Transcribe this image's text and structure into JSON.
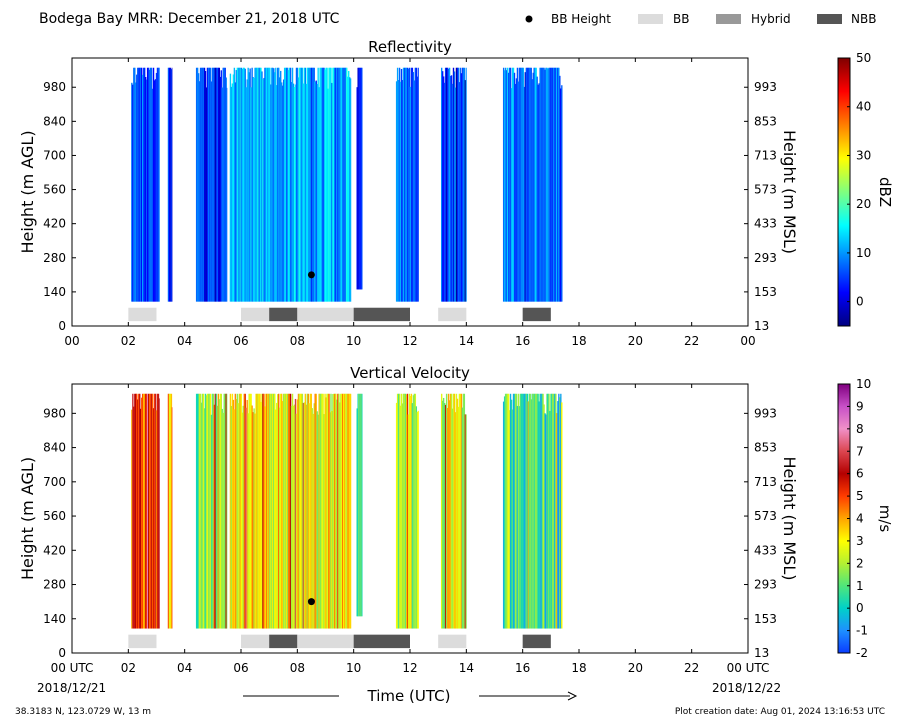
{
  "title": "Bodega Bay MRR:  December 21, 2018 UTC",
  "legend": {
    "items": [
      {
        "label": "BB Height",
        "kind": "dot",
        "color": "#000000"
      },
      {
        "label": "BB",
        "kind": "patch",
        "color": "#dcdcdc"
      },
      {
        "label": "Hybrid",
        "kind": "patch",
        "color": "#999999"
      },
      {
        "label": "NBB",
        "kind": "patch",
        "color": "#555555"
      }
    ]
  },
  "footer": {
    "coords": "38.3183 N, 123.0729 W, 13 m",
    "created": "Plot creation date: Aug 01, 2024 13:16:53 UTC",
    "start_date": "2018/12/21",
    "end_date": "2018/12/22",
    "time_label": "Time (UTC)"
  },
  "chart_data": [
    {
      "type": "heatmap",
      "title": "Reflectivity",
      "ylabel": "Height (m AGL)",
      "ylabel_right": "Height (m MSL)",
      "xlim": [
        0,
        24
      ],
      "ylim": [
        0,
        1100
      ],
      "x_ticks": [
        "00",
        "02",
        "04",
        "06",
        "08",
        "10",
        "12",
        "14",
        "16",
        "18",
        "20",
        "22",
        "00"
      ],
      "y_ticks": [
        0,
        140,
        280,
        420,
        560,
        700,
        840,
        980
      ],
      "y_ticks_right": [
        13,
        153,
        293,
        433,
        573,
        713,
        853,
        993
      ],
      "colorbar": {
        "label": "dBZ",
        "min": -5,
        "max": 50,
        "ticks": [
          0,
          10,
          20,
          30,
          40,
          50
        ],
        "colors": [
          "#00007f",
          "#0000ff",
          "#007fff",
          "#00ffff",
          "#7fff7f",
          "#ffff00",
          "#ff7f00",
          "#ff0000",
          "#7f0000"
        ]
      },
      "bb_height": [
        {
          "time": 8.5,
          "height": 210
        }
      ],
      "bb_classes": [
        {
          "start": 2.0,
          "end": 3.0,
          "class": "BB"
        },
        {
          "start": 6.0,
          "end": 7.0,
          "class": "BB"
        },
        {
          "start": 7.0,
          "end": 8.0,
          "class": "NBB"
        },
        {
          "start": 8.0,
          "end": 10.0,
          "class": "BB"
        },
        {
          "start": 10.0,
          "end": 12.0,
          "class": "NBB"
        },
        {
          "start": 13.0,
          "end": 14.0,
          "class": "BB"
        },
        {
          "start": 16.0,
          "end": 17.0,
          "class": "NBB"
        }
      ],
      "echo_segments": [
        {
          "start": 2.1,
          "end": 3.1,
          "top": 1060,
          "base": 100,
          "value": 6
        },
        {
          "start": 3.4,
          "end": 3.55,
          "top": 1060,
          "base": 100,
          "value": 4
        },
        {
          "start": 4.4,
          "end": 5.5,
          "top": 1060,
          "base": 100,
          "value": 5
        },
        {
          "start": 5.6,
          "end": 9.9,
          "top": 1060,
          "base": 100,
          "value": 12
        },
        {
          "start": 10.1,
          "end": 10.3,
          "top": 1060,
          "base": 150,
          "value": 3
        },
        {
          "start": 11.5,
          "end": 12.3,
          "top": 1060,
          "base": 100,
          "value": 8
        },
        {
          "start": 13.1,
          "end": 14.0,
          "top": 1060,
          "base": 100,
          "value": 6
        },
        {
          "start": 15.3,
          "end": 17.4,
          "top": 1060,
          "base": 100,
          "value": 9
        }
      ]
    },
    {
      "type": "heatmap",
      "title": "Vertical Velocity",
      "ylabel": "Height (m AGL)",
      "ylabel_right": "Height (m MSL)",
      "xlim": [
        0,
        24
      ],
      "ylim": [
        0,
        1100
      ],
      "x_ticks": [
        "00 UTC",
        "02",
        "04",
        "06",
        "08",
        "10",
        "12",
        "14",
        "16",
        "18",
        "20",
        "22",
        "00 UTC"
      ],
      "y_ticks": [
        0,
        140,
        280,
        420,
        560,
        700,
        840,
        980
      ],
      "y_ticks_right": [
        13,
        153,
        293,
        433,
        573,
        713,
        853,
        993
      ],
      "colorbar": {
        "label": "m/s",
        "min": -2,
        "max": 10,
        "ticks": [
          -2,
          -1,
          0,
          1,
          2,
          3,
          4,
          5,
          6,
          7,
          8,
          9,
          10
        ],
        "colors": [
          "#0a3cff",
          "#1e90ff",
          "#00d2c8",
          "#50e67a",
          "#b4f032",
          "#ffff00",
          "#ffa500",
          "#ff3c00",
          "#b40000",
          "#dc4650",
          "#f090c8",
          "#c850c8",
          "#800080"
        ]
      },
      "bb_height": [
        {
          "time": 8.5,
          "height": 210
        }
      ],
      "bb_classes": [
        {
          "start": 2.0,
          "end": 3.0,
          "class": "BB"
        },
        {
          "start": 6.0,
          "end": 7.0,
          "class": "BB"
        },
        {
          "start": 7.0,
          "end": 8.0,
          "class": "NBB"
        },
        {
          "start": 8.0,
          "end": 10.0,
          "class": "BB"
        },
        {
          "start": 10.0,
          "end": 12.0,
          "class": "NBB"
        },
        {
          "start": 13.0,
          "end": 14.0,
          "class": "BB"
        },
        {
          "start": 16.0,
          "end": 17.0,
          "class": "NBB"
        }
      ],
      "echo_segments": [
        {
          "start": 2.1,
          "end": 3.1,
          "top": 1060,
          "base": 100,
          "value": 5
        },
        {
          "start": 3.4,
          "end": 3.55,
          "top": 1060,
          "base": 100,
          "value": 4
        },
        {
          "start": 4.4,
          "end": 5.5,
          "top": 1060,
          "base": 100,
          "value": 1.5
        },
        {
          "start": 5.6,
          "end": 9.9,
          "top": 1060,
          "base": 100,
          "value": 3
        },
        {
          "start": 10.1,
          "end": 10.3,
          "top": 1060,
          "base": 150,
          "value": 1.5
        },
        {
          "start": 11.5,
          "end": 12.3,
          "top": 1060,
          "base": 100,
          "value": 2
        },
        {
          "start": 13.1,
          "end": 14.0,
          "top": 1060,
          "base": 100,
          "value": 2.5
        },
        {
          "start": 15.3,
          "end": 17.4,
          "top": 1060,
          "base": 100,
          "value": 0.5
        }
      ]
    }
  ]
}
